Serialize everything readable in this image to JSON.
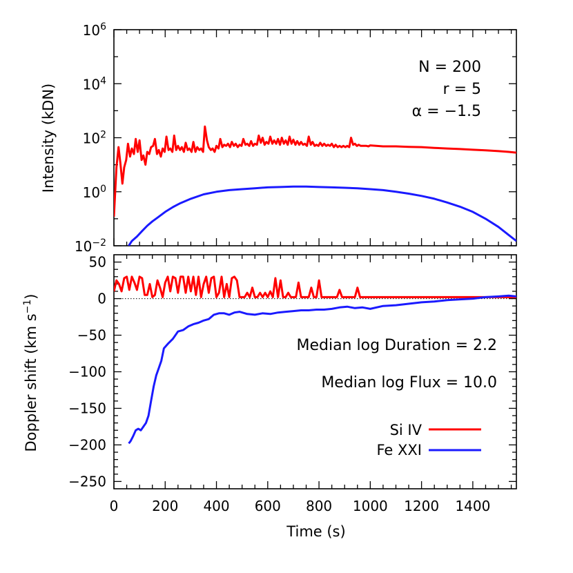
{
  "chart_data": [
    {
      "type": "line",
      "ylabel": "Intensity (kDN)",
      "yscale": "log",
      "ylim": [
        0.01,
        1000000
      ],
      "xlim": [
        0,
        1570
      ],
      "ytick_exponents": [
        "-2",
        "0",
        "2",
        "4",
        "6"
      ],
      "annotations": [
        "N = 200",
        "r = 5",
        "α = −1.5"
      ],
      "series": [
        {
          "name": "Si IV",
          "color": "#ff0000",
          "x": [
            0,
            10,
            18,
            25,
            33,
            40,
            48,
            55,
            63,
            70,
            78,
            85,
            93,
            100,
            108,
            115,
            123,
            130,
            138,
            145,
            153,
            160,
            168,
            175,
            183,
            190,
            198,
            205,
            213,
            220,
            228,
            235,
            243,
            250,
            258,
            265,
            273,
            280,
            288,
            295,
            303,
            310,
            318,
            325,
            333,
            340,
            348,
            355,
            363,
            370,
            378,
            385,
            393,
            400,
            408,
            415,
            423,
            430,
            438,
            445,
            453,
            460,
            468,
            475,
            483,
            490,
            498,
            505,
            513,
            520,
            528,
            535,
            543,
            550,
            558,
            565,
            573,
            580,
            588,
            595,
            603,
            610,
            618,
            625,
            633,
            640,
            648,
            655,
            663,
            670,
            678,
            685,
            693,
            700,
            708,
            715,
            723,
            730,
            738,
            745,
            753,
            760,
            768,
            775,
            783,
            790,
            798,
            805,
            813,
            820,
            828,
            835,
            843,
            850,
            858,
            865,
            873,
            880,
            888,
            895,
            903,
            910,
            918,
            925,
            933,
            940,
            948,
            955,
            963,
            970,
            978,
            985,
            993,
            1000,
            1050,
            1100,
            1150,
            1200,
            1250,
            1300,
            1350,
            1400,
            1450,
            1500,
            1540,
            1570
          ],
          "y": [
            0.12,
            8,
            45,
            12,
            2,
            8,
            15,
            60,
            20,
            40,
            25,
            90,
            30,
            80,
            15,
            22,
            10,
            30,
            25,
            45,
            50,
            90,
            25,
            35,
            20,
            40,
            30,
            110,
            35,
            40,
            30,
            120,
            35,
            50,
            35,
            45,
            30,
            65,
            35,
            40,
            30,
            70,
            30,
            45,
            35,
            40,
            30,
            260,
            80,
            45,
            35,
            40,
            30,
            50,
            40,
            90,
            45,
            55,
            50,
            60,
            45,
            70,
            50,
            60,
            45,
            55,
            50,
            90,
            55,
            60,
            50,
            75,
            50,
            60,
            55,
            120,
            65,
            100,
            55,
            70,
            60,
            110,
            60,
            80,
            60,
            90,
            55,
            100,
            60,
            80,
            55,
            110,
            60,
            85,
            55,
            75,
            55,
            70,
            55,
            60,
            50,
            110,
            55,
            70,
            50,
            55,
            50,
            65,
            50,
            60,
            50,
            55,
            50,
            60,
            45,
            55,
            45,
            50,
            45,
            50,
            45,
            50,
            45,
            100,
            55,
            60,
            50,
            55,
            50,
            50,
            50,
            50,
            48,
            52,
            48,
            48,
            46,
            45,
            42,
            40,
            38,
            36,
            34,
            32,
            30,
            28
          ]
        },
        {
          "name": "Fe XXI",
          "color": "#1a1aff",
          "x": [
            58,
            70,
            90,
            110,
            130,
            150,
            170,
            200,
            230,
            260,
            300,
            350,
            400,
            450,
            500,
            550,
            600,
            650,
            700,
            750,
            800,
            850,
            900,
            950,
            1000,
            1050,
            1100,
            1150,
            1200,
            1250,
            1300,
            1350,
            1400,
            1450,
            1500,
            1540,
            1570
          ],
          "y": [
            0.01,
            0.015,
            0.022,
            0.035,
            0.055,
            0.08,
            0.11,
            0.18,
            0.27,
            0.38,
            0.55,
            0.8,
            1.0,
            1.15,
            1.25,
            1.35,
            1.45,
            1.5,
            1.55,
            1.55,
            1.5,
            1.45,
            1.4,
            1.35,
            1.25,
            1.15,
            1.0,
            0.85,
            0.7,
            0.55,
            0.4,
            0.28,
            0.18,
            0.1,
            0.05,
            0.025,
            0.015
          ]
        }
      ]
    },
    {
      "type": "line",
      "xlabel": "Time (s)",
      "ylabel": "Doppler shift (km s⁻¹)",
      "ylim": [
        -260,
        60
      ],
      "xlim": [
        0,
        1570
      ],
      "xticks": [
        0,
        200,
        400,
        600,
        800,
        1000,
        1200,
        1400
      ],
      "yticks": [
        50,
        0,
        -50,
        -100,
        -150,
        -200,
        -250
      ],
      "reference_line": 0,
      "annotations": [
        "Median log Duration = 2.2",
        "Median log Flux = 10.0"
      ],
      "legend_position": "bottom-right",
      "series": [
        {
          "name": "Si IV",
          "color": "#ff0000",
          "x": [
            0,
            10,
            20,
            30,
            40,
            50,
            60,
            70,
            80,
            90,
            100,
            110,
            120,
            130,
            140,
            150,
            160,
            170,
            180,
            190,
            200,
            210,
            220,
            230,
            240,
            250,
            260,
            270,
            280,
            290,
            300,
            310,
            320,
            330,
            340,
            350,
            360,
            370,
            380,
            390,
            400,
            410,
            420,
            430,
            440,
            450,
            460,
            470,
            480,
            490,
            500,
            510,
            520,
            530,
            540,
            550,
            560,
            570,
            580,
            590,
            600,
            610,
            620,
            630,
            640,
            650,
            660,
            670,
            680,
            690,
            700,
            710,
            720,
            730,
            740,
            750,
            760,
            770,
            780,
            790,
            800,
            810,
            820,
            830,
            840,
            850,
            860,
            870,
            880,
            890,
            900,
            910,
            920,
            930,
            940,
            950,
            960,
            970,
            980,
            1000,
            1100,
            1200,
            1300,
            1400,
            1450,
            1500,
            1540,
            1570
          ],
          "y": [
            10,
            25,
            20,
            10,
            28,
            30,
            12,
            30,
            22,
            12,
            30,
            28,
            5,
            5,
            20,
            2,
            5,
            25,
            15,
            2,
            22,
            30,
            10,
            30,
            28,
            8,
            30,
            30,
            8,
            30,
            10,
            30,
            5,
            30,
            2,
            20,
            30,
            8,
            28,
            30,
            2,
            8,
            30,
            2,
            20,
            2,
            28,
            30,
            25,
            2,
            2,
            2,
            8,
            2,
            15,
            2,
            2,
            8,
            2,
            8,
            2,
            10,
            2,
            28,
            2,
            25,
            2,
            2,
            8,
            2,
            2,
            2,
            22,
            2,
            2,
            2,
            2,
            15,
            2,
            2,
            25,
            2,
            2,
            2,
            2,
            2,
            2,
            2,
            12,
            2,
            2,
            2,
            2,
            2,
            2,
            15,
            2,
            2,
            2,
            2,
            2,
            2,
            2,
            2,
            2,
            2,
            2,
            2
          ]
        },
        {
          "name": "Fe XXI",
          "color": "#1a1aff",
          "x": [
            58,
            65,
            75,
            85,
            95,
            105,
            115,
            125,
            135,
            145,
            155,
            165,
            175,
            185,
            195,
            210,
            230,
            250,
            270,
            290,
            310,
            330,
            350,
            370,
            390,
            410,
            430,
            450,
            470,
            490,
            520,
            550,
            580,
            610,
            640,
            670,
            700,
            730,
            760,
            790,
            820,
            850,
            880,
            910,
            940,
            970,
            1000,
            1050,
            1100,
            1150,
            1200,
            1250,
            1300,
            1350,
            1400,
            1450,
            1500,
            1540,
            1570
          ],
          "y": [
            -198,
            -195,
            -188,
            -180,
            -178,
            -180,
            -175,
            -170,
            -160,
            -140,
            -120,
            -105,
            -95,
            -85,
            -68,
            -62,
            -55,
            -45,
            -43,
            -38,
            -35,
            -33,
            -30,
            -28,
            -22,
            -20,
            -20,
            -22,
            -19,
            -18,
            -21,
            -22,
            -20,
            -21,
            -19,
            -18,
            -17,
            -16,
            -16,
            -15,
            -15,
            -14,
            -12,
            -11,
            -13,
            -12,
            -14,
            -10,
            -9,
            -7,
            -5,
            -4,
            -2,
            -1,
            0,
            2,
            3,
            4,
            3
          ]
        }
      ]
    }
  ]
}
